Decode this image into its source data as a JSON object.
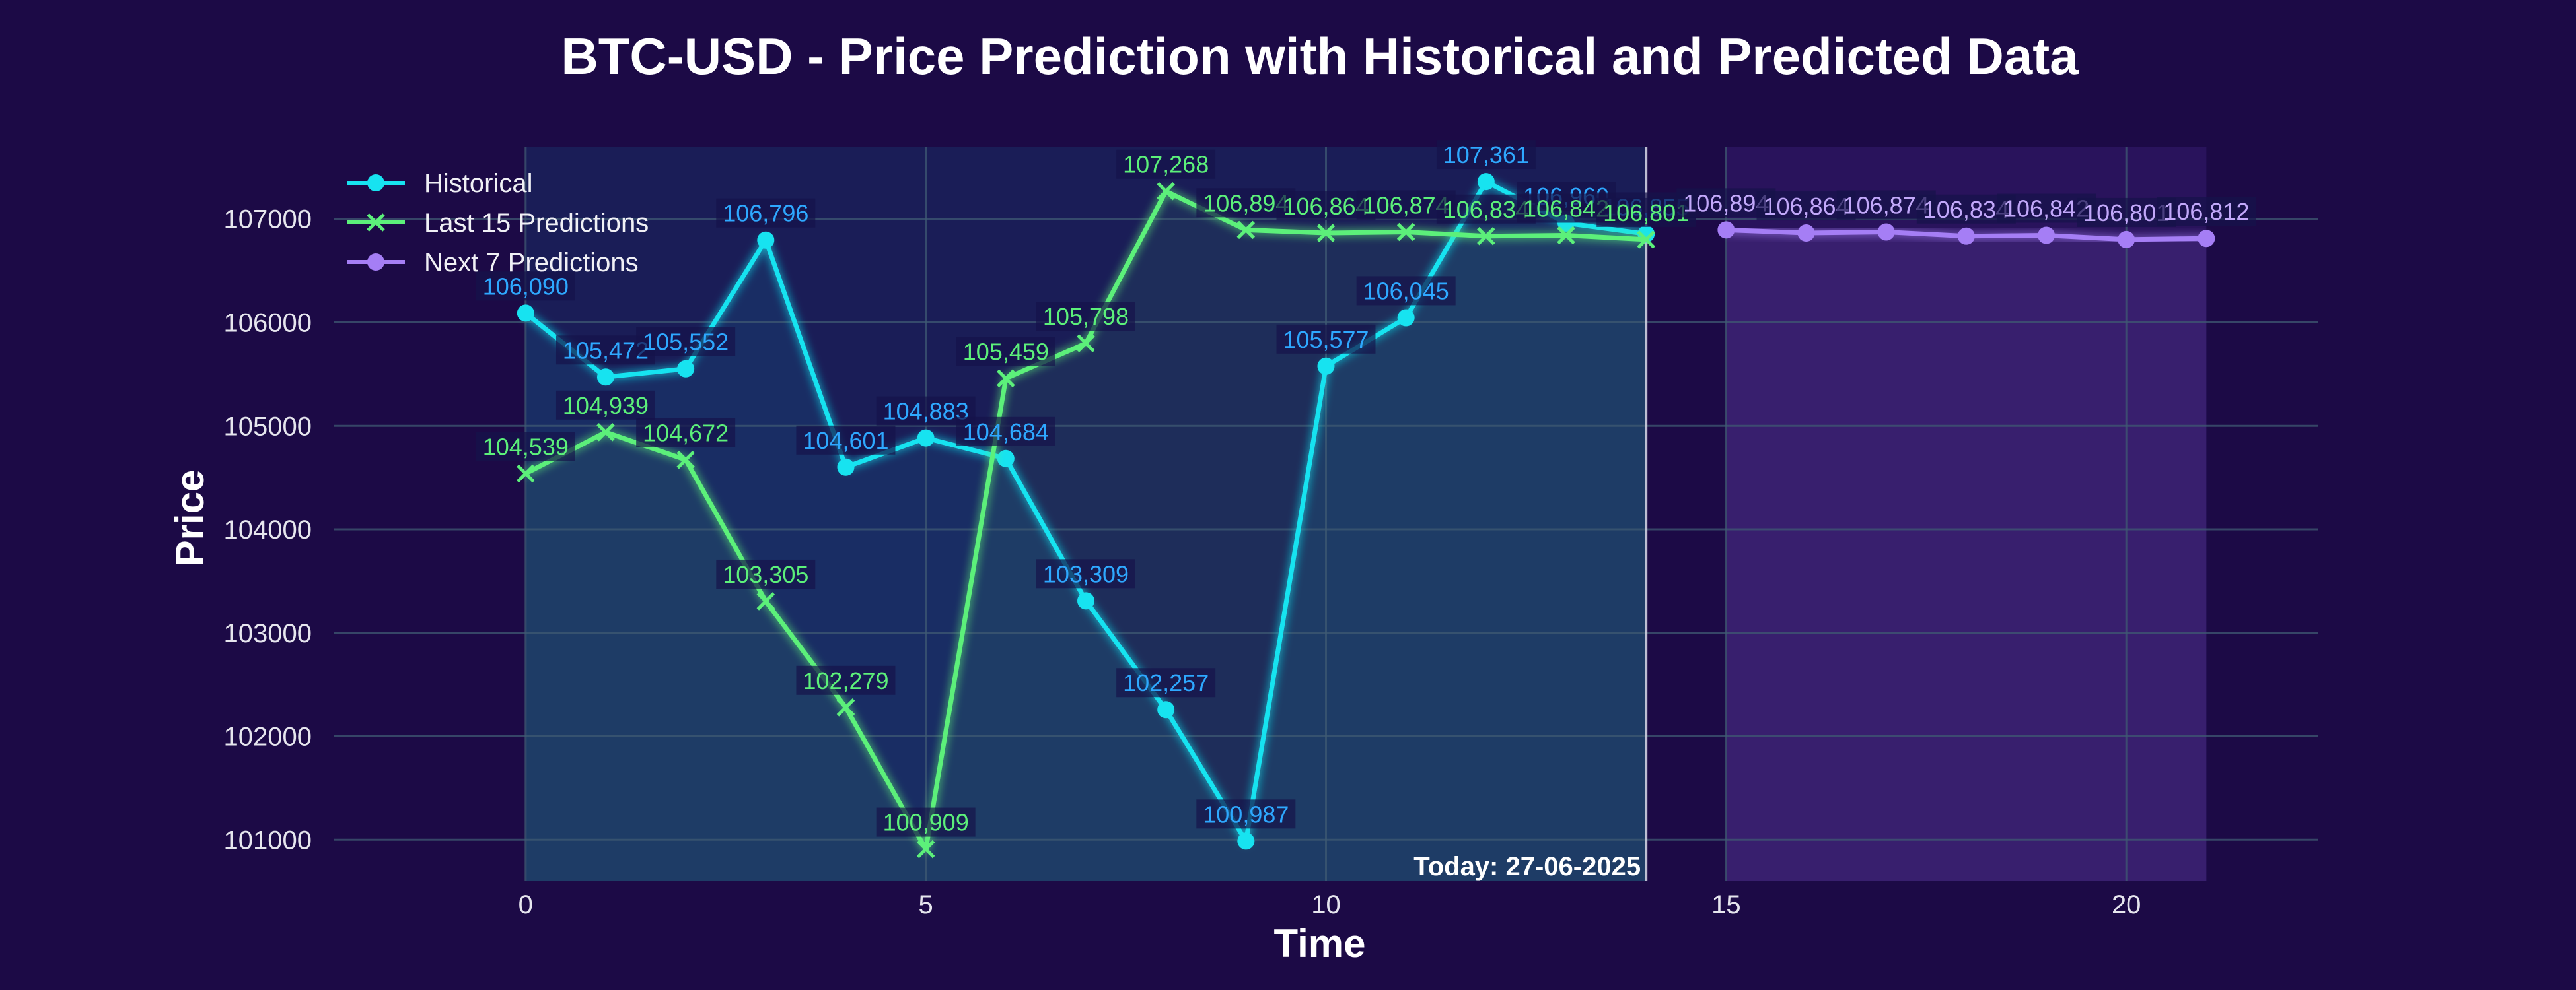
{
  "chart_data": {
    "type": "line",
    "title": "BTC-USD - Price Prediction with Historical and Predicted Data",
    "xlabel": "Time",
    "ylabel": "Price",
    "xlim": [
      -2.4,
      22.4
    ],
    "ylim": [
      100600,
      107700
    ],
    "x_ticks": [
      0,
      5,
      10,
      15,
      20
    ],
    "y_ticks": [
      101000,
      102000,
      103000,
      104000,
      105000,
      106000,
      107000
    ],
    "grid": true,
    "legend_position": "top-left",
    "today_x": 14,
    "today_label": "Today: 27-06-2025",
    "series": [
      {
        "name": "Historical",
        "color": "#17e3f0",
        "label_color": "#2ea8ff",
        "marker": "circle",
        "x": [
          0,
          1,
          2,
          3,
          4,
          5,
          6,
          7,
          8,
          9,
          10,
          11,
          12,
          13,
          14
        ],
        "values": [
          106090,
          105472,
          105552,
          106796,
          104601,
          104883,
          104684,
          103309,
          102257,
          100987,
          105577,
          106045,
          107361,
          106960,
          106855
        ],
        "labels": [
          "106,090",
          "105,472",
          "105,552",
          "106,796",
          "104,601",
          "104,883",
          "104,684",
          "103,309",
          "102,257",
          "100,987",
          "105,577",
          "106,045",
          "107,361",
          "106,960",
          "106,855"
        ]
      },
      {
        "name": "Last 15 Predictions",
        "color": "#5cf07a",
        "label_color": "#5cf07a",
        "marker": "x",
        "x": [
          0,
          1,
          2,
          3,
          4,
          5,
          6,
          7,
          8,
          9,
          10,
          11,
          12,
          13,
          14
        ],
        "values": [
          104539,
          104939,
          104672,
          103305,
          102279,
          100909,
          105459,
          105798,
          107268,
          106894,
          106864,
          106874,
          106834,
          106842,
          106801
        ],
        "labels": [
          "104,539",
          "104,939",
          "104,672",
          "103,305",
          "102,279",
          "100,909",
          "105,459",
          "105,798",
          "107,268",
          "106,894",
          "106,864",
          "106,874",
          "106,834",
          "106,842",
          "106,801"
        ]
      },
      {
        "name": "Next 7 Predictions",
        "color": "#a57ef5",
        "label_color": "#c2a8fa",
        "marker": "circle",
        "x": [
          15,
          16,
          17,
          18,
          19,
          20,
          21
        ],
        "values": [
          106894,
          106864,
          106874,
          106834,
          106842,
          106801,
          106812
        ],
        "labels": [
          "106,894",
          "106,864",
          "106,874",
          "106,834",
          "106,842",
          "106,801",
          "106,812"
        ]
      }
    ]
  }
}
